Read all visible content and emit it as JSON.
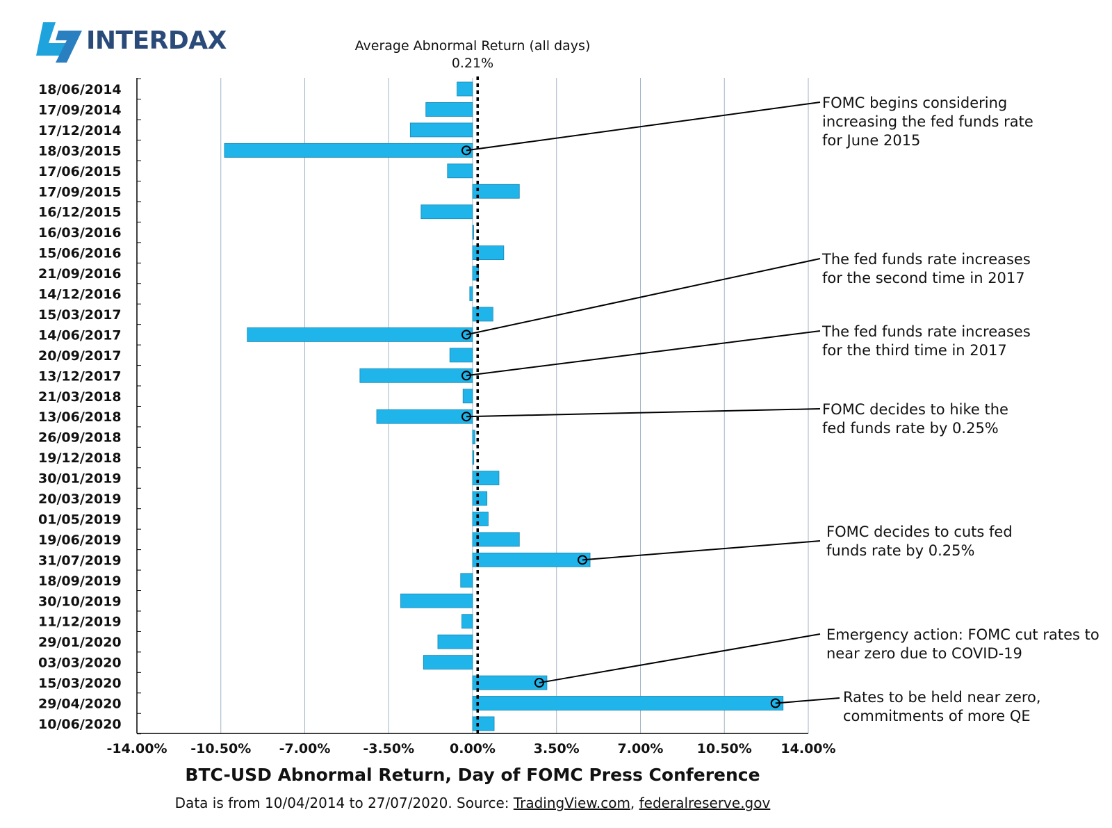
{
  "logo": {
    "text": "INTERDAX"
  },
  "average": {
    "label": "Average Abnormal Return (all days)",
    "value_text": "0.21%",
    "value": 0.21
  },
  "chart_data": {
    "type": "bar",
    "orientation": "horizontal",
    "title": "BTC-USD Abnormal Return, Day of FOMC Press Conference",
    "subtitle_prefix": "Data is from 10/04/2014 to 27/07/2020. Source: ",
    "sources": [
      "TradingView.com",
      "federalreserve.gov"
    ],
    "xlim": [
      -14,
      14
    ],
    "xticks": [
      -14,
      -10.5,
      -7,
      -3.5,
      0,
      3.5,
      7,
      10.5,
      14
    ],
    "xtick_labels": [
      "-14.00%",
      "-10.50%",
      "-7.00%",
      "-3.50%",
      "0.00%",
      "3.50%",
      "7.00%",
      "10.50%",
      "14.00%"
    ],
    "categories": [
      "18/06/2014",
      "17/09/2014",
      "17/12/2014",
      "18/03/2015",
      "17/06/2015",
      "17/09/2015",
      "16/12/2015",
      "16/03/2016",
      "15/06/2016",
      "21/09/2016",
      "14/12/2016",
      "15/03/2017",
      "14/06/2017",
      "20/09/2017",
      "13/12/2017",
      "21/03/2018",
      "13/06/2018",
      "26/09/2018",
      "19/12/2018",
      "30/01/2019",
      "20/03/2019",
      "01/05/2019",
      "19/06/2019",
      "31/07/2019",
      "18/09/2019",
      "30/10/2019",
      "11/12/2019",
      "29/01/2020",
      "03/03/2020",
      "15/03/2020",
      "29/04/2020",
      "10/06/2020"
    ],
    "values": [
      -0.65,
      -1.95,
      -2.6,
      -10.35,
      -1.05,
      1.95,
      -2.15,
      0.02,
      1.3,
      0.25,
      -0.12,
      0.85,
      -9.4,
      -0.95,
      -4.7,
      -0.4,
      -4.0,
      0.1,
      0.05,
      1.1,
      0.6,
      0.65,
      1.95,
      4.9,
      -0.5,
      -3.0,
      -0.45,
      -1.45,
      -2.05,
      3.1,
      12.95,
      0.9
    ],
    "annotations": [
      {
        "category": "18/03/2015",
        "lines": [
          "FOMC begins considering",
          "increasing the fed funds rate",
          "for June 2015"
        ]
      },
      {
        "category": "14/06/2017",
        "lines": [
          "The fed funds rate increases",
          "for the second time in 2017"
        ]
      },
      {
        "category": "13/12/2017",
        "lines": [
          "The fed funds rate increases",
          "for the third time in 2017"
        ]
      },
      {
        "category": "13/06/2018",
        "lines": [
          "FOMC decides to hike the",
          "fed funds rate by 0.25%"
        ]
      },
      {
        "category": "31/07/2019",
        "lines": [
          "FOMC decides to cuts fed",
          "funds rate by 0.25%"
        ]
      },
      {
        "category": "15/03/2020",
        "lines": [
          "Emergency action: FOMC cut rates to",
          "near zero due to COVID-19"
        ]
      },
      {
        "category": "29/04/2020",
        "lines": [
          "Rates to be held near zero,",
          "commitments of more QE"
        ]
      }
    ]
  },
  "colors": {
    "bar": "#1fb5ea",
    "bar_stroke": "#1a85b0",
    "grid": "#9fb3c8",
    "logo": "#2a4a7a",
    "logo_mark": "#1fa3dc"
  }
}
